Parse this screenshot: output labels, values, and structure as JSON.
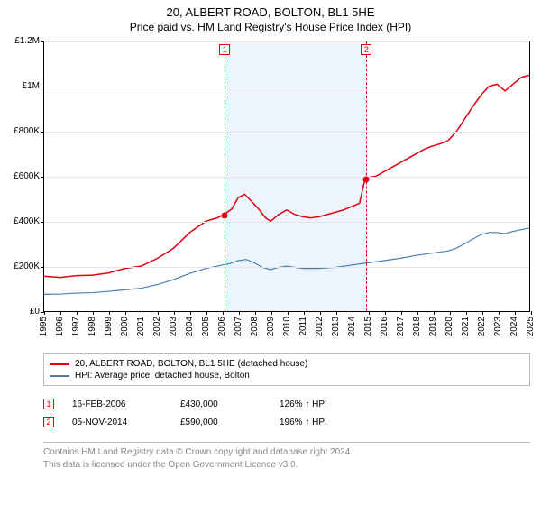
{
  "title": "20, ALBERT ROAD, BOLTON, BL1 5HE",
  "subtitle": "Price paid vs. HM Land Registry's House Price Index (HPI)",
  "chart": {
    "type": "line",
    "background_color": "#ffffff",
    "grid_color": "#e5e5e5",
    "axis_color": "#000000",
    "label_fontsize": 10,
    "title_fontsize": 13,
    "xlim": [
      1995,
      2025
    ],
    "ylim": [
      0,
      1200000
    ],
    "y_ticks": [
      0,
      200000,
      400000,
      600000,
      800000,
      1000000,
      1200000
    ],
    "y_tick_labels": [
      "£0",
      "£200K",
      "£400K",
      "£600K",
      "£800K",
      "£1M",
      "£1.2M"
    ],
    "x_ticks": [
      1995,
      1996,
      1997,
      1998,
      1999,
      2000,
      2001,
      2002,
      2003,
      2004,
      2005,
      2006,
      2007,
      2008,
      2009,
      2010,
      2011,
      2012,
      2013,
      2014,
      2015,
      2016,
      2017,
      2018,
      2019,
      2020,
      2021,
      2022,
      2023,
      2024,
      2025
    ],
    "shade_span": [
      2006.13,
      2014.85
    ],
    "shade_color": "#eef4fb",
    "series": [
      {
        "name": "price_paid",
        "label": "20, ALBERT ROAD, BOLTON, BL1 5HE (detached house)",
        "color": "#e3000f",
        "line_width": 1.5,
        "points": [
          [
            1995.0,
            155000
          ],
          [
            1996.0,
            150000
          ],
          [
            1997.0,
            158000
          ],
          [
            1998.0,
            160000
          ],
          [
            1999.0,
            170000
          ],
          [
            2000.0,
            190000
          ],
          [
            2001.0,
            200000
          ],
          [
            2002.0,
            235000
          ],
          [
            2003.0,
            280000
          ],
          [
            2004.0,
            350000
          ],
          [
            2005.0,
            400000
          ],
          [
            2005.7,
            415000
          ],
          [
            2006.13,
            430000
          ],
          [
            2006.6,
            455000
          ],
          [
            2007.0,
            505000
          ],
          [
            2007.4,
            520000
          ],
          [
            2007.8,
            490000
          ],
          [
            2008.2,
            460000
          ],
          [
            2008.7,
            415000
          ],
          [
            2009.0,
            400000
          ],
          [
            2009.5,
            430000
          ],
          [
            2010.0,
            450000
          ],
          [
            2010.5,
            430000
          ],
          [
            2011.0,
            420000
          ],
          [
            2011.5,
            415000
          ],
          [
            2012.0,
            420000
          ],
          [
            2012.5,
            430000
          ],
          [
            2013.0,
            440000
          ],
          [
            2013.5,
            450000
          ],
          [
            2014.0,
            465000
          ],
          [
            2014.5,
            480000
          ],
          [
            2014.85,
            590000
          ],
          [
            2015.0,
            595000
          ],
          [
            2015.5,
            600000
          ],
          [
            2016.0,
            620000
          ],
          [
            2016.5,
            640000
          ],
          [
            2017.0,
            660000
          ],
          [
            2017.5,
            680000
          ],
          [
            2018.0,
            700000
          ],
          [
            2018.5,
            720000
          ],
          [
            2019.0,
            735000
          ],
          [
            2019.5,
            745000
          ],
          [
            2020.0,
            760000
          ],
          [
            2020.5,
            800000
          ],
          [
            2021.0,
            855000
          ],
          [
            2021.5,
            910000
          ],
          [
            2022.0,
            960000
          ],
          [
            2022.5,
            1000000
          ],
          [
            2023.0,
            1010000
          ],
          [
            2023.5,
            980000
          ],
          [
            2024.0,
            1010000
          ],
          [
            2024.5,
            1040000
          ],
          [
            2025.0,
            1050000
          ]
        ]
      },
      {
        "name": "hpi",
        "label": "HPI: Average price, detached house, Bolton",
        "color": "#4a7fb0",
        "line_width": 1.2,
        "points": [
          [
            1995.0,
            75000
          ],
          [
            1996.0,
            76000
          ],
          [
            1997.0,
            80000
          ],
          [
            1998.0,
            82000
          ],
          [
            1999.0,
            88000
          ],
          [
            2000.0,
            95000
          ],
          [
            2001.0,
            102000
          ],
          [
            2002.0,
            118000
          ],
          [
            2003.0,
            140000
          ],
          [
            2004.0,
            168000
          ],
          [
            2005.0,
            190000
          ],
          [
            2006.0,
            205000
          ],
          [
            2006.5,
            212000
          ],
          [
            2007.0,
            225000
          ],
          [
            2007.5,
            230000
          ],
          [
            2008.0,
            215000
          ],
          [
            2008.5,
            195000
          ],
          [
            2009.0,
            185000
          ],
          [
            2009.5,
            195000
          ],
          [
            2010.0,
            200000
          ],
          [
            2010.5,
            195000
          ],
          [
            2011.0,
            190000
          ],
          [
            2012.0,
            190000
          ],
          [
            2013.0,
            195000
          ],
          [
            2014.0,
            205000
          ],
          [
            2015.0,
            215000
          ],
          [
            2016.0,
            225000
          ],
          [
            2017.0,
            235000
          ],
          [
            2018.0,
            248000
          ],
          [
            2019.0,
            258000
          ],
          [
            2020.0,
            268000
          ],
          [
            2020.5,
            280000
          ],
          [
            2021.0,
            300000
          ],
          [
            2021.5,
            320000
          ],
          [
            2022.0,
            340000
          ],
          [
            2022.5,
            350000
          ],
          [
            2023.0,
            350000
          ],
          [
            2023.5,
            345000
          ],
          [
            2024.0,
            355000
          ],
          [
            2025.0,
            370000
          ]
        ]
      }
    ],
    "markers": [
      {
        "id": "1",
        "x": 2006.13,
        "y": 430000,
        "color": "#e3000f"
      },
      {
        "id": "2",
        "x": 2014.85,
        "y": 590000,
        "color": "#e3000f"
      }
    ]
  },
  "legend": {
    "items": [
      {
        "color": "#e3000f",
        "label": "20, ALBERT ROAD, BOLTON, BL1 5HE (detached house)"
      },
      {
        "color": "#4a7fb0",
        "label": "HPI: Average price, detached house, Bolton"
      }
    ]
  },
  "sales": [
    {
      "id": "1",
      "color": "#e3000f",
      "date": "16-FEB-2006",
      "price": "£430,000",
      "hpi": "126% ↑ HPI"
    },
    {
      "id": "2",
      "color": "#e3000f",
      "date": "05-NOV-2014",
      "price": "£590,000",
      "hpi": "196% ↑ HPI"
    }
  ],
  "footer": {
    "line1": "Contains HM Land Registry data © Crown copyright and database right 2024.",
    "line2": "This data is licensed under the Open Government Licence v3.0."
  }
}
